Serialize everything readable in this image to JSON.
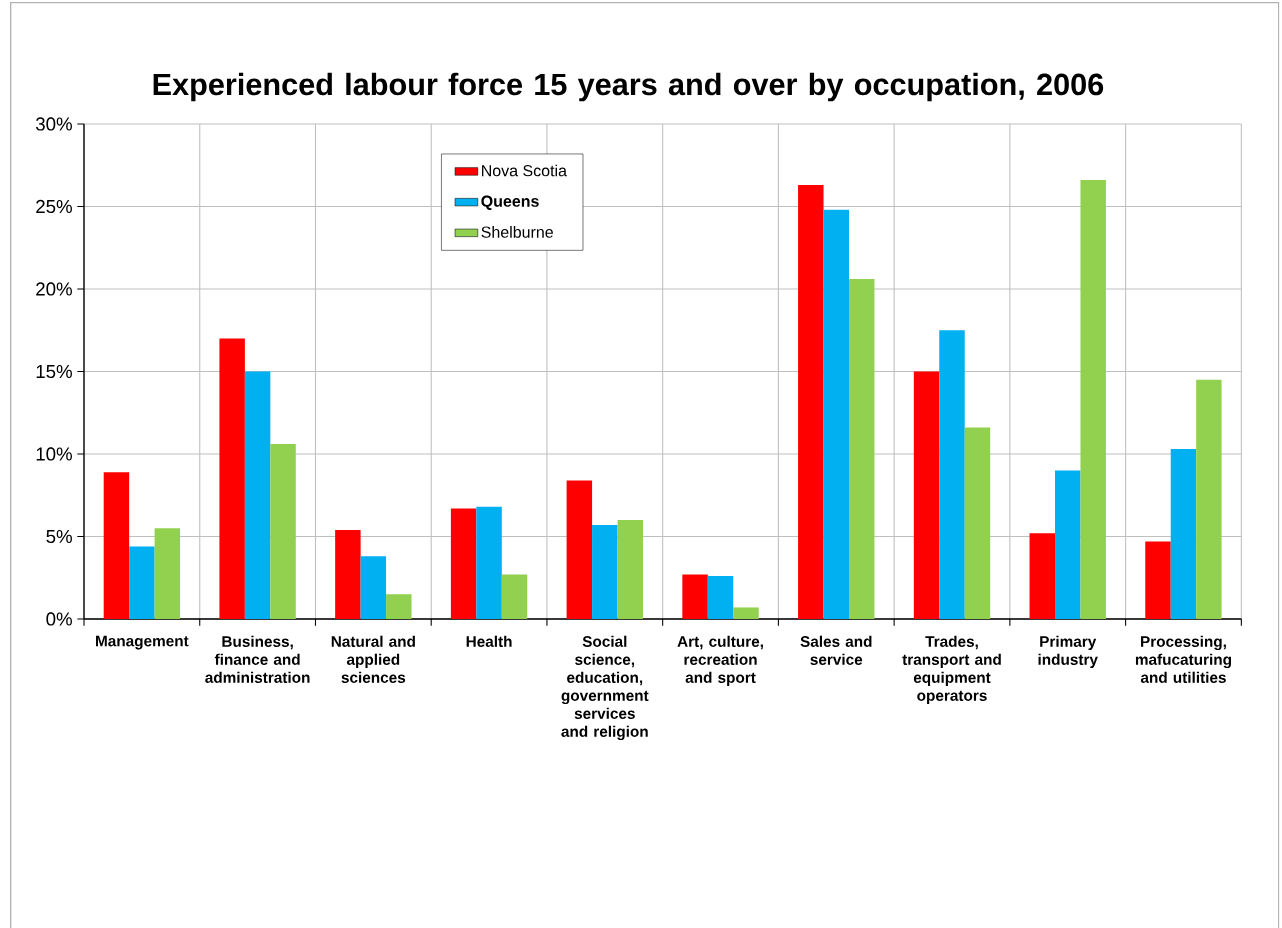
{
  "chart_data": {
    "type": "bar",
    "title": "Experienced labour force 15 years and over by occupation, 2006",
    "categories": [
      "Management",
      "Business, finance and administration",
      "Natural and applied sciences",
      "Health",
      "Social science, education, government services and religion",
      "Art, culture, recreation and sport",
      "Sales and service",
      "Trades, transport and equipment operators",
      "Primary industry",
      "Processing, mafucaturing and utilities"
    ],
    "series": [
      {
        "name": "Nova Scotia",
        "color": "#ff0000",
        "values": [
          8.9,
          17.0,
          5.4,
          6.7,
          8.4,
          2.7,
          26.3,
          15.0,
          5.2,
          4.7
        ]
      },
      {
        "name": "**Queens**",
        "color": "#00b0f0",
        "values": [
          4.4,
          15.0,
          3.8,
          6.8,
          5.7,
          2.6,
          24.8,
          17.5,
          9.0,
          10.3
        ]
      },
      {
        "name": "Shelburne",
        "color": "#92d050",
        "values": [
          5.5,
          10.6,
          1.5,
          2.7,
          6.0,
          0.7,
          20.6,
          11.6,
          26.6,
          14.5
        ]
      }
    ],
    "ylim": [
      0,
      30
    ],
    "yticks": [
      {
        "value": 0,
        "label": "0%"
      },
      {
        "value": 5,
        "label": "5%"
      },
      {
        "value": 10,
        "label": "10%"
      },
      {
        "value": 15,
        "label": "15%"
      },
      {
        "value": 20,
        "label": "20%"
      },
      {
        "value": 25,
        "label": "25%"
      },
      {
        "value": 30,
        "label": "30%"
      }
    ],
    "grid": true,
    "legend": "top"
  }
}
